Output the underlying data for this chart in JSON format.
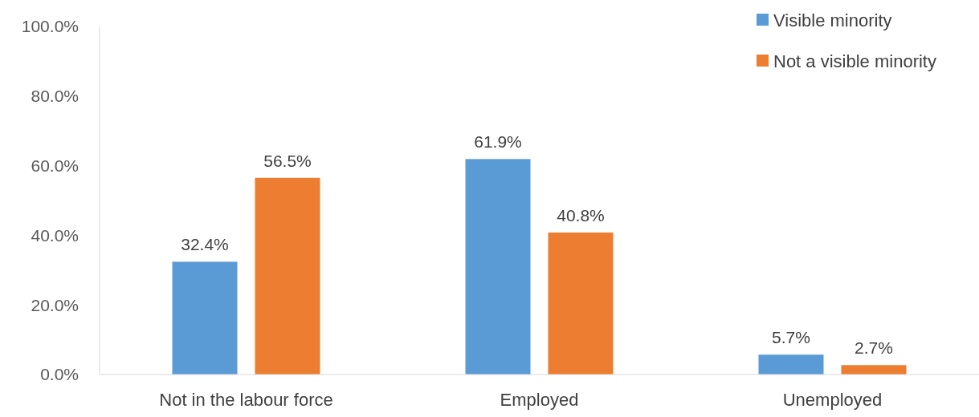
{
  "chart_data": {
    "type": "bar",
    "categories": [
      "Not in the labour force",
      "Employed",
      "Unemployed"
    ],
    "series": [
      {
        "name": "Visible minority",
        "color": "#5b9bd5",
        "values": [
          32.4,
          61.9,
          5.7
        ],
        "value_labels": [
          "32.4%",
          "61.9%",
          "5.7%"
        ]
      },
      {
        "name": "Not a visible minority",
        "color": "#ed7d31",
        "values": [
          56.5,
          40.8,
          2.7
        ],
        "value_labels": [
          "56.5%",
          "40.8%",
          "2.7%"
        ]
      }
    ],
    "ylim": [
      0,
      100
    ],
    "yticks": [
      {
        "value": 0,
        "label": "0.0%"
      },
      {
        "value": 20,
        "label": "20.0%"
      },
      {
        "value": 40,
        "label": "40.0%"
      },
      {
        "value": 60,
        "label": "60.0%"
      },
      {
        "value": 80,
        "label": "80.0%"
      },
      {
        "value": 100,
        "label": "100.0%"
      }
    ],
    "grid": false,
    "legend": "top right"
  }
}
